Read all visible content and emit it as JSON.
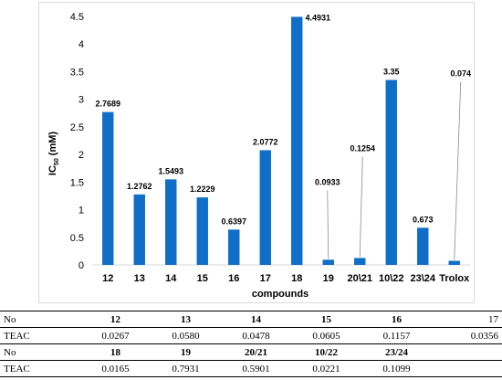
{
  "chart_data": {
    "type": "bar",
    "ylabel": "IC",
    "ylabel_sub": "50",
    "ylabel_unit": " (mM)",
    "xlabel": "compounds",
    "ylim": [
      0,
      4.5
    ],
    "yticks": [
      "0",
      "0.5",
      "1",
      "1.5",
      "2",
      "2.5",
      "3",
      "3.5",
      "4",
      "4.5"
    ],
    "categories": [
      "12",
      "13",
      "14",
      "15",
      "16",
      "17",
      "18",
      "19",
      "20\\21",
      "10\\22",
      "23\\24",
      "Trolox"
    ],
    "values": [
      2.7689,
      1.2762,
      1.5493,
      1.2229,
      0.6397,
      2.0772,
      4.4931,
      0.0933,
      0.1254,
      3.35,
      0.673,
      0.074
    ],
    "data_labels": [
      "2.7689",
      "1.2762",
      "1.5493",
      "1.2229",
      "0.6397",
      "2.0772",
      "4.4931",
      "0.0933",
      "0.1254",
      "3.35",
      "0.673",
      "0.074"
    ],
    "bar_color": "#0f6fc6",
    "grid": false
  },
  "table": {
    "rows": [
      {
        "label": "No",
        "cells": [
          "12",
          "13",
          "14",
          "15",
          "16",
          "17"
        ]
      },
      {
        "label": "TEAC",
        "cells": [
          "0.0267",
          "0.0580",
          "0.0478",
          "0.0605",
          "0.1157",
          "0.0356"
        ]
      },
      {
        "label": "No",
        "cells": [
          "18",
          "19",
          "20/21",
          "10/22",
          "23/24",
          ""
        ]
      },
      {
        "label": "TEAC",
        "cells": [
          "0.0165",
          "0.7931",
          "0.5901",
          "0.0221",
          "0.1099",
          ""
        ]
      }
    ]
  }
}
